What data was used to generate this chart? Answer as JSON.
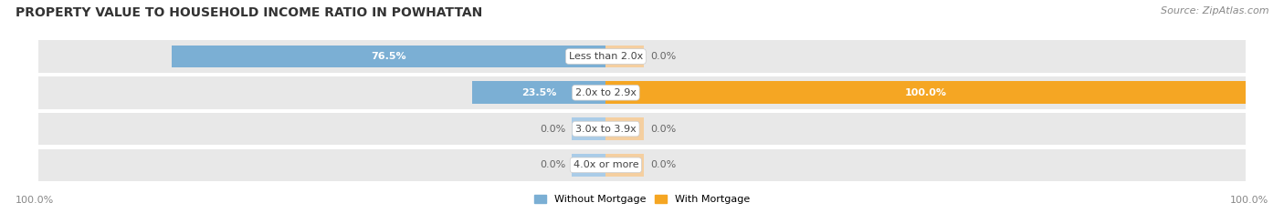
{
  "title": "PROPERTY VALUE TO HOUSEHOLD INCOME RATIO IN POWHATTAN",
  "source": "Source: ZipAtlas.com",
  "categories": [
    "Less than 2.0x",
    "2.0x to 2.9x",
    "3.0x to 3.9x",
    "4.0x or more"
  ],
  "without_mortgage": [
    76.5,
    23.5,
    0.0,
    0.0
  ],
  "with_mortgage": [
    0.0,
    100.0,
    0.0,
    0.0
  ],
  "blue_color": "#7bafd4",
  "blue_stub_color": "#aacce8",
  "orange_color": "#f5a623",
  "orange_stub_color": "#f5cfa0",
  "row_bg_color": "#e8e8e8",
  "title_fontsize": 10,
  "source_fontsize": 8,
  "tick_fontsize": 8,
  "label_fontsize": 8,
  "value_fontsize": 8,
  "legend_fontsize": 8,
  "max_val": 100,
  "stub_val": 6,
  "left_axis_label": "100.0%",
  "right_axis_label": "100.0%",
  "background_color": "#ffffff"
}
